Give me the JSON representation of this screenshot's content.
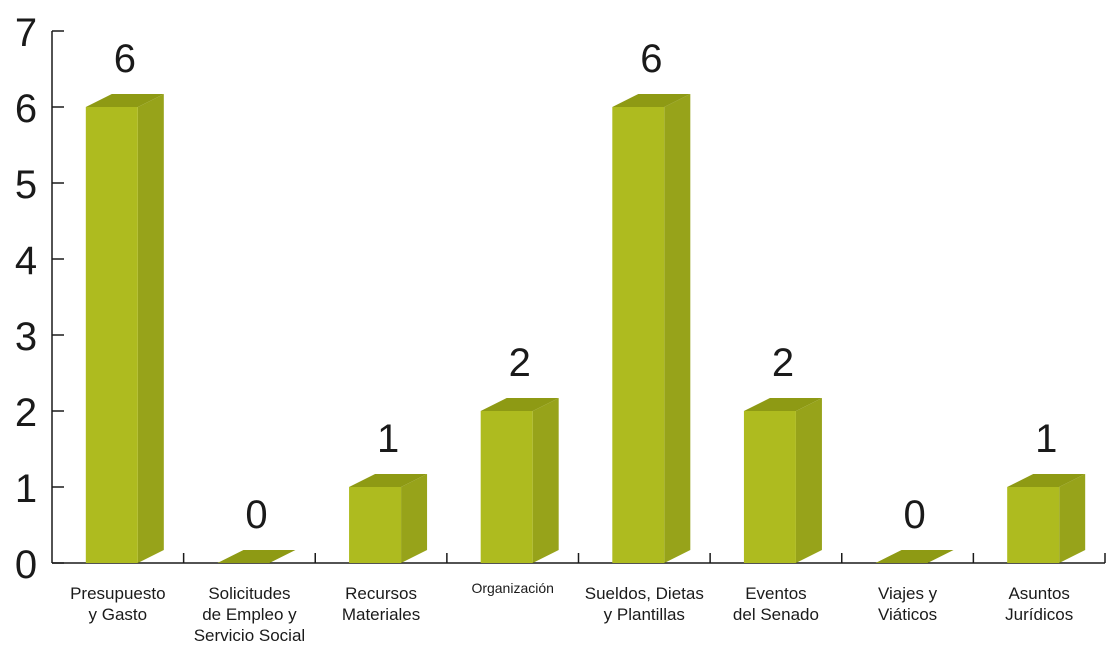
{
  "chart_data": {
    "type": "bar",
    "style": "3d-column",
    "categories": [
      "Presupuesto y Gasto",
      "Solicitudes de Empleo y Servicio Social",
      "Recursos Materiales",
      "Organización",
      "Sueldos, Dietas y Plantillas",
      "Eventos del Senado",
      "Viajes y Viáticos",
      "Asuntos Jurídicos"
    ],
    "category_label_lines": [
      [
        "Presupuesto",
        "y Gasto"
      ],
      [
        "Solicitudes",
        "de Empleo y",
        "Servicio Social"
      ],
      [
        "Recursos",
        "Materiales"
      ],
      [
        "Organización"
      ],
      [
        "Sueldos, Dietas",
        "y Plantillas"
      ],
      [
        "Eventos",
        "del Senado"
      ],
      [
        "Viajes y",
        "Viáticos"
      ],
      [
        "Asuntos",
        "Jurídicos"
      ]
    ],
    "values": [
      6,
      0,
      1,
      2,
      6,
      2,
      0,
      1
    ],
    "data_labels": [
      "6",
      "0",
      "1",
      "2",
      "6",
      "2",
      "0",
      "1"
    ],
    "title": "",
    "xlabel": "",
    "ylabel": "",
    "ylim": [
      0,
      7
    ],
    "yticks": [
      "0",
      "1",
      "2",
      "3",
      "4",
      "5",
      "6",
      "7"
    ],
    "grid": false,
    "legend": "none",
    "colors": {
      "front": "#AEBB1F",
      "side": "#97A31A",
      "top": "#8E9A14",
      "axis": "#1a1a1a"
    }
  }
}
